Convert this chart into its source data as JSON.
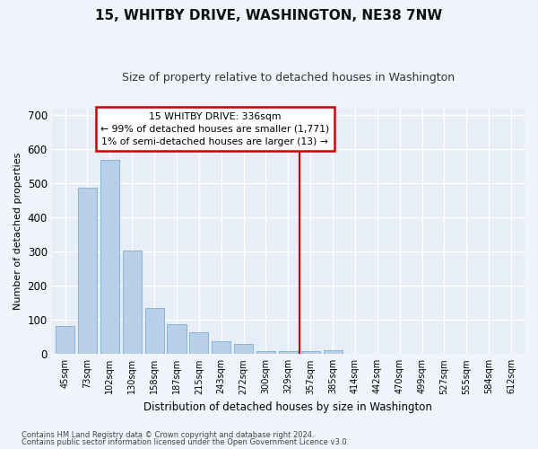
{
  "title": "15, WHITBY DRIVE, WASHINGTON, NE38 7NW",
  "subtitle": "Size of property relative to detached houses in Washington",
  "xlabel": "Distribution of detached houses by size in Washington",
  "ylabel": "Number of detached properties",
  "categories": [
    "45sqm",
    "73sqm",
    "102sqm",
    "130sqm",
    "158sqm",
    "187sqm",
    "215sqm",
    "243sqm",
    "272sqm",
    "300sqm",
    "329sqm",
    "357sqm",
    "385sqm",
    "414sqm",
    "442sqm",
    "470sqm",
    "499sqm",
    "527sqm",
    "555sqm",
    "584sqm",
    "612sqm"
  ],
  "values": [
    83,
    487,
    568,
    302,
    135,
    87,
    65,
    37,
    30,
    10,
    8,
    8,
    12,
    0,
    0,
    0,
    0,
    0,
    0,
    0,
    0
  ],
  "bar_color": "#b8d0ea",
  "bar_edge_color": "#7aafd4",
  "background_color": "#e8eef8",
  "grid_color": "#ffffff",
  "vline_color": "#cc0000",
  "annotation_text": "15 WHITBY DRIVE: 336sqm\n← 99% of detached houses are smaller (1,771)\n1% of semi-detached houses are larger (13) →",
  "annotation_box_color": "#cc0000",
  "ylim": [
    0,
    720
  ],
  "yticks": [
    0,
    100,
    200,
    300,
    400,
    500,
    600,
    700
  ],
  "title_fontsize": 11,
  "subtitle_fontsize": 9,
  "footer_line1": "Contains HM Land Registry data © Crown copyright and database right 2024.",
  "footer_line2": "Contains public sector information licensed under the Open Government Licence v3.0."
}
